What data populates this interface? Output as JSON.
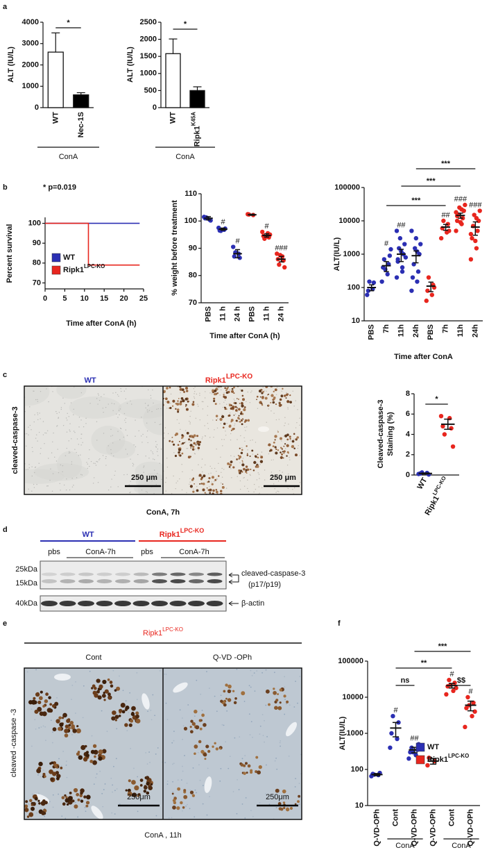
{
  "panel_labels": [
    "a",
    "b",
    "c",
    "d",
    "e",
    "f"
  ],
  "chart_data": [
    {
      "type": "bar",
      "ylabel": "ALT (IU/L)",
      "categories": [
        "WT",
        "Nec-1S"
      ],
      "values": [
        2600,
        600
      ],
      "errors": [
        900,
        100
      ],
      "colors": [
        "#ffffff",
        "#000000"
      ],
      "ylim": [
        0,
        4000
      ],
      "yticks": [
        0,
        1000,
        2000,
        3000,
        4000
      ],
      "brackets": [
        {
          "from": 0,
          "to": 1,
          "label": "*"
        }
      ],
      "group_label": "ConA"
    },
    {
      "type": "bar",
      "ylabel": "ALT (IU/L)",
      "categories": [
        "WT",
        "Ripk1"
      ],
      "category_superscripts": [
        null,
        "K45A"
      ],
      "values": [
        1580,
        500
      ],
      "errors": [
        430,
        110
      ],
      "colors": [
        "#ffffff",
        "#000000"
      ],
      "ylim": [
        0,
        2500
      ],
      "yticks": [
        0,
        500,
        1000,
        1500,
        2000,
        2500
      ],
      "brackets": [
        {
          "from": 0,
          "to": 1,
          "label": "*"
        }
      ],
      "group_label": "ConA"
    },
    {
      "type": "line",
      "ylabel": "Percent survival",
      "xlabel": "Time after ConA (h)",
      "annotation": "* p=0.019",
      "series": [
        {
          "name": "WT",
          "color": "#2b2fb3",
          "x": [
            0,
            24
          ],
          "values": [
            100,
            100
          ]
        },
        {
          "name": "Ripk1",
          "name_superscript": "LPC-KO",
          "color": "#e8261e",
          "x": [
            0,
            11,
            11,
            24
          ],
          "values": [
            100,
            100,
            79,
            79
          ]
        }
      ],
      "xlim": [
        0,
        25
      ],
      "xticks": [
        0,
        5,
        10,
        15,
        20,
        25
      ],
      "ylim": [
        67,
        103
      ],
      "yticks": [
        70,
        80,
        90,
        100
      ],
      "legend": "lower left"
    },
    {
      "type": "dot",
      "ylabel": "% weight before treatment",
      "xlabel": "Time after ConA (h)",
      "categories": [
        "PBS",
        "11 h",
        "24 h",
        "PBS",
        "11 h",
        "24 h"
      ],
      "series": [
        {
          "color": "#2b2fb3",
          "points": [
            [
              101.5,
              100.5,
              101,
              100.2,
              101.3
            ],
            [
              97.5,
              96.8,
              96.5,
              97.2,
              96.4
            ],
            [
              90.5,
              88,
              87,
              86.5,
              88.5
            ],
            null,
            null,
            null
          ],
          "means": [
            101,
            97,
            88,
            null,
            null,
            null
          ],
          "errors": [
            0.6,
            0.4,
            1.5,
            null,
            null,
            null
          ]
        },
        {
          "color": "#e8261e",
          "points": [
            null,
            null,
            null,
            [
              102.5,
              102.2,
              102.4
            ],
            [
              96,
              95.5,
              94.5,
              94,
              93.5,
              95,
              94.2
            ],
            [
              88,
              87,
              86,
              85.5,
              84,
              83,
              87.5
            ]
          ],
          "means": [
            null,
            null,
            null,
            102.3,
            94.7,
            86
          ],
          "errors": [
            null,
            null,
            null,
            0.2,
            0.6,
            1
          ]
        }
      ],
      "significance": [
        null,
        "#",
        "#",
        null,
        "#",
        "###"
      ],
      "ylim": [
        70,
        110
      ],
      "yticks": [
        70,
        80,
        90,
        100,
        110
      ]
    },
    {
      "type": "dot",
      "log": true,
      "ylabel": "ALT(IU/L)",
      "xlabel": "Time after ConA",
      "categories": [
        "PBS",
        "7h",
        "11h",
        "24h",
        "PBS",
        "7h",
        "11h",
        "24h"
      ],
      "series": [
        {
          "color": "#2b2fb3",
          "points": [
            [
              60,
              90,
              80,
              140,
              150
            ],
            [
              150,
              250,
              400,
              500,
              700,
              900,
              350,
              1400
            ],
            [
              200,
              300,
              600,
              1000,
              1500,
              2000,
              3000,
              800,
              1200,
              5000,
              400,
              700
            ],
            [
              80,
              150,
              200,
              300,
              500,
              1000,
              1500,
              2000,
              3000,
              5000,
              1200
            ],
            null,
            null,
            null,
            null
          ],
          "means": [
            100,
            450,
            1000,
            900,
            null,
            null,
            null,
            null
          ],
          "errors": [
            20,
            150,
            400,
            350,
            null,
            null,
            null,
            null
          ]
        },
        {
          "color": "#e8261e",
          "points": [
            null,
            null,
            null,
            null,
            [
              40,
              60,
              80,
              120,
              200,
              100
            ],
            [
              3000,
              4500,
              6000,
              8000,
              10000,
              5000
            ],
            [
              5000,
              8000,
              10000,
              12000,
              15000,
              20000,
              25000,
              30000,
              9000,
              18000,
              22000,
              14000
            ],
            [
              700,
              1500,
              3000,
              5000,
              7000,
              10000,
              15000,
              20000,
              2500,
              4000,
              12000
            ]
          ],
          "means": [
            null,
            null,
            null,
            null,
            110,
            6500,
            14500,
            6500
          ],
          "errors": [
            null,
            null,
            null,
            null,
            35,
            1300,
            2500,
            2800
          ]
        }
      ],
      "significance": [
        null,
        "#",
        "##",
        null,
        null,
        "##",
        "###",
        "###"
      ],
      "brackets": [
        {
          "from": 1,
          "to": 5,
          "label": "***"
        },
        {
          "from": 2,
          "to": 6,
          "label": "***"
        },
        {
          "from": 3,
          "to": 7,
          "label": "***"
        }
      ],
      "ylim": [
        10,
        100000
      ],
      "yticks": [
        10,
        100,
        1000,
        10000,
        100000
      ]
    },
    {
      "type": "dot",
      "ylabel": [
        "Cleaved-caspase-3",
        "Staining (%)"
      ],
      "categories": [
        "WT",
        "Ripk1"
      ],
      "category_superscripts": [
        null,
        "LPC-KO"
      ],
      "series": [
        {
          "color": "#2b2fb3",
          "points": [
            [
              0.1,
              0.2,
              0.15,
              0.05,
              0.25
            ],
            null
          ],
          "means": [
            0.15,
            null
          ],
          "errors": [
            0.05,
            null
          ]
        },
        {
          "color": "#e8261e",
          "points": [
            null,
            [
              5.8,
              5.6,
              4.8,
              4.6,
              4.0,
              2.8
            ]
          ],
          "means": [
            null,
            5.0
          ],
          "errors": [
            null,
            0.5
          ]
        }
      ],
      "brackets": [
        {
          "from": 0,
          "to": 1,
          "label": "*"
        }
      ],
      "ylim": [
        0,
        8
      ],
      "yticks": [
        0,
        2,
        4,
        6,
        8
      ]
    },
    {
      "type": "dot",
      "log": true,
      "ylabel": "ALT(IU/L)",
      "categories": [
        "Q-VD-OPh",
        "Cont",
        "Q-VD-OPh",
        "Q-VD-OPh",
        "Cont",
        "Q-VD-OPh"
      ],
      "series": [
        {
          "name": "WT",
          "color": "#2b2fb3",
          "points": [
            [
              65,
              70,
              75,
              80,
              72
            ],
            [
              400,
              700,
              1000,
              2000,
              3000
            ],
            [
              200,
              250,
              300,
              350,
              400,
              500,
              300
            ],
            null,
            null,
            null
          ],
          "means": [
            72,
            1400,
            350,
            null,
            null,
            null
          ],
          "errors": [
            5,
            600,
            60,
            null,
            null,
            null
          ]
        },
        {
          "name": "Ripk1",
          "name_superscript": "LPC-KO",
          "color": "#e8261e",
          "points": [
            null,
            null,
            null,
            [
              130,
              170,
              210
            ],
            [
              12000,
              15000,
              20000,
              25000,
              30000,
              18000,
              22000
            ],
            [
              1500,
              3000,
              5000,
              7000,
              10000,
              4000,
              6000
            ]
          ],
          "means": [
            null,
            null,
            null,
            170,
            21000,
            6000
          ],
          "errors": [
            null,
            null,
            null,
            30,
            3000,
            1800
          ]
        }
      ],
      "significance": [
        null,
        "#",
        "##",
        null,
        "#",
        "#"
      ],
      "brackets": [
        {
          "from": 1,
          "to": 2,
          "label": "ns"
        },
        {
          "from": 1,
          "to": 4,
          "label": "**"
        },
        {
          "from": 2,
          "to": 5,
          "label": "***"
        },
        {
          "from": 4,
          "to": 5,
          "label": "$$"
        }
      ],
      "groups": [
        {
          "label": "ConA",
          "from": 1,
          "to": 2
        },
        {
          "label": "ConA",
          "from": 4,
          "to": 5
        }
      ],
      "ylim": [
        10,
        100000
      ],
      "yticks": [
        10,
        100,
        1000,
        10000,
        100000
      ],
      "legend": "center right"
    }
  ],
  "image_c": {
    "titles": [
      {
        "text": "WT"
      },
      {
        "text": "Ripk1",
        "sup": "LPC-KO"
      }
    ],
    "stain": "cleaved-caspase-3",
    "scale_bars": [
      "250 μm",
      "250 μm"
    ],
    "caption": "ConA, 7h"
  },
  "blot_d": {
    "groups": [
      {
        "text": "WT"
      },
      {
        "text": "Ripk1",
        "sup": "LPC-KO"
      }
    ],
    "lanes": [
      "pbs",
      "ConA-7h",
      "pbs",
      "ConA-7h"
    ],
    "markers": [
      "25kDa",
      "15kDa",
      "40kDa"
    ],
    "bands": [
      "cleaved-caspase-3",
      "(p17/p19)",
      "β-actin"
    ]
  },
  "image_e": {
    "header": {
      "text": "Ripk1",
      "sup": "LPC-KO"
    },
    "columns": [
      "Cont",
      "Q-VD -OPh"
    ],
    "stain": "cleaved -caspase -3",
    "scale_bars": [
      "250μm",
      "250μm"
    ],
    "caption": "ConA , 11h"
  }
}
